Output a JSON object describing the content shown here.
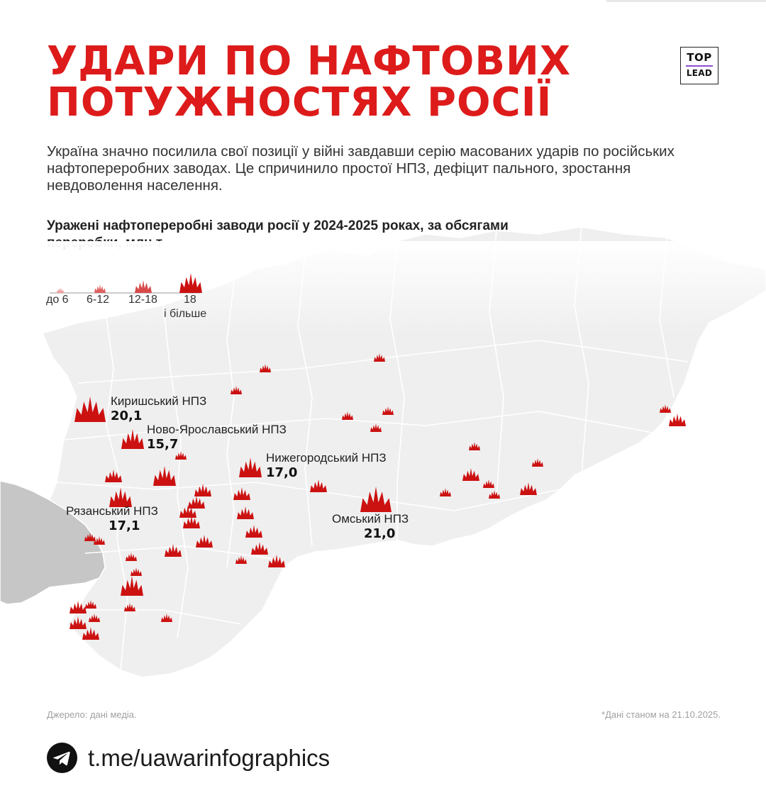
{
  "title_lines": [
    "УДАРИ ПО НАФТОВИХ",
    "ПОТУЖНОСТЯХ РОСІЇ"
  ],
  "logo": {
    "top": "TOP",
    "bottom": "LEAD"
  },
  "intro": "Україна значно посилила свої позиції у війні завдавши серію масованих ударів по російських нафтопереробних заводах. Це спричинило простої НПЗ, дефіцит пального, зростання невдоволення населення.",
  "map_title": "Уражені нафтопереробні заводи росії у 2024-2025 роках, за обсягами переробки, млн т",
  "legend": [
    {
      "label": "до 6",
      "size_class": 1
    },
    {
      "label": "6-12",
      "size_class": 2
    },
    {
      "label": "12-18",
      "size_class": 3
    },
    {
      "label": "18",
      "label2": "і більше",
      "size_class": 4
    }
  ],
  "refineries": [
    {
      "name": "Киришський НПЗ",
      "value": "20,1"
    },
    {
      "name": "Ново-Ярославський НПЗ",
      "value": "15,7"
    },
    {
      "name": "Нижегородський НПЗ",
      "value": "17,0"
    },
    {
      "name": "Рязанський НПЗ",
      "value": "17,1"
    },
    {
      "name": "Омський НПЗ",
      "value": "21,0"
    }
  ],
  "footer": {
    "source": "Джерело: дані медіа.",
    "date_note": "*Дані станом на 21.10.2025.",
    "telegram": "t.me/uawarinfographics"
  },
  "colors": {
    "accent": "#dd1b1b",
    "marker": "#cc1111",
    "map_land": "#efefef",
    "map_neighbor": "#c6c6c6",
    "text": "#1a1a1a",
    "muted": "#a0a0a0"
  },
  "icons": {
    "marker": "fire-marker-icon",
    "telegram": "telegram-icon"
  }
}
